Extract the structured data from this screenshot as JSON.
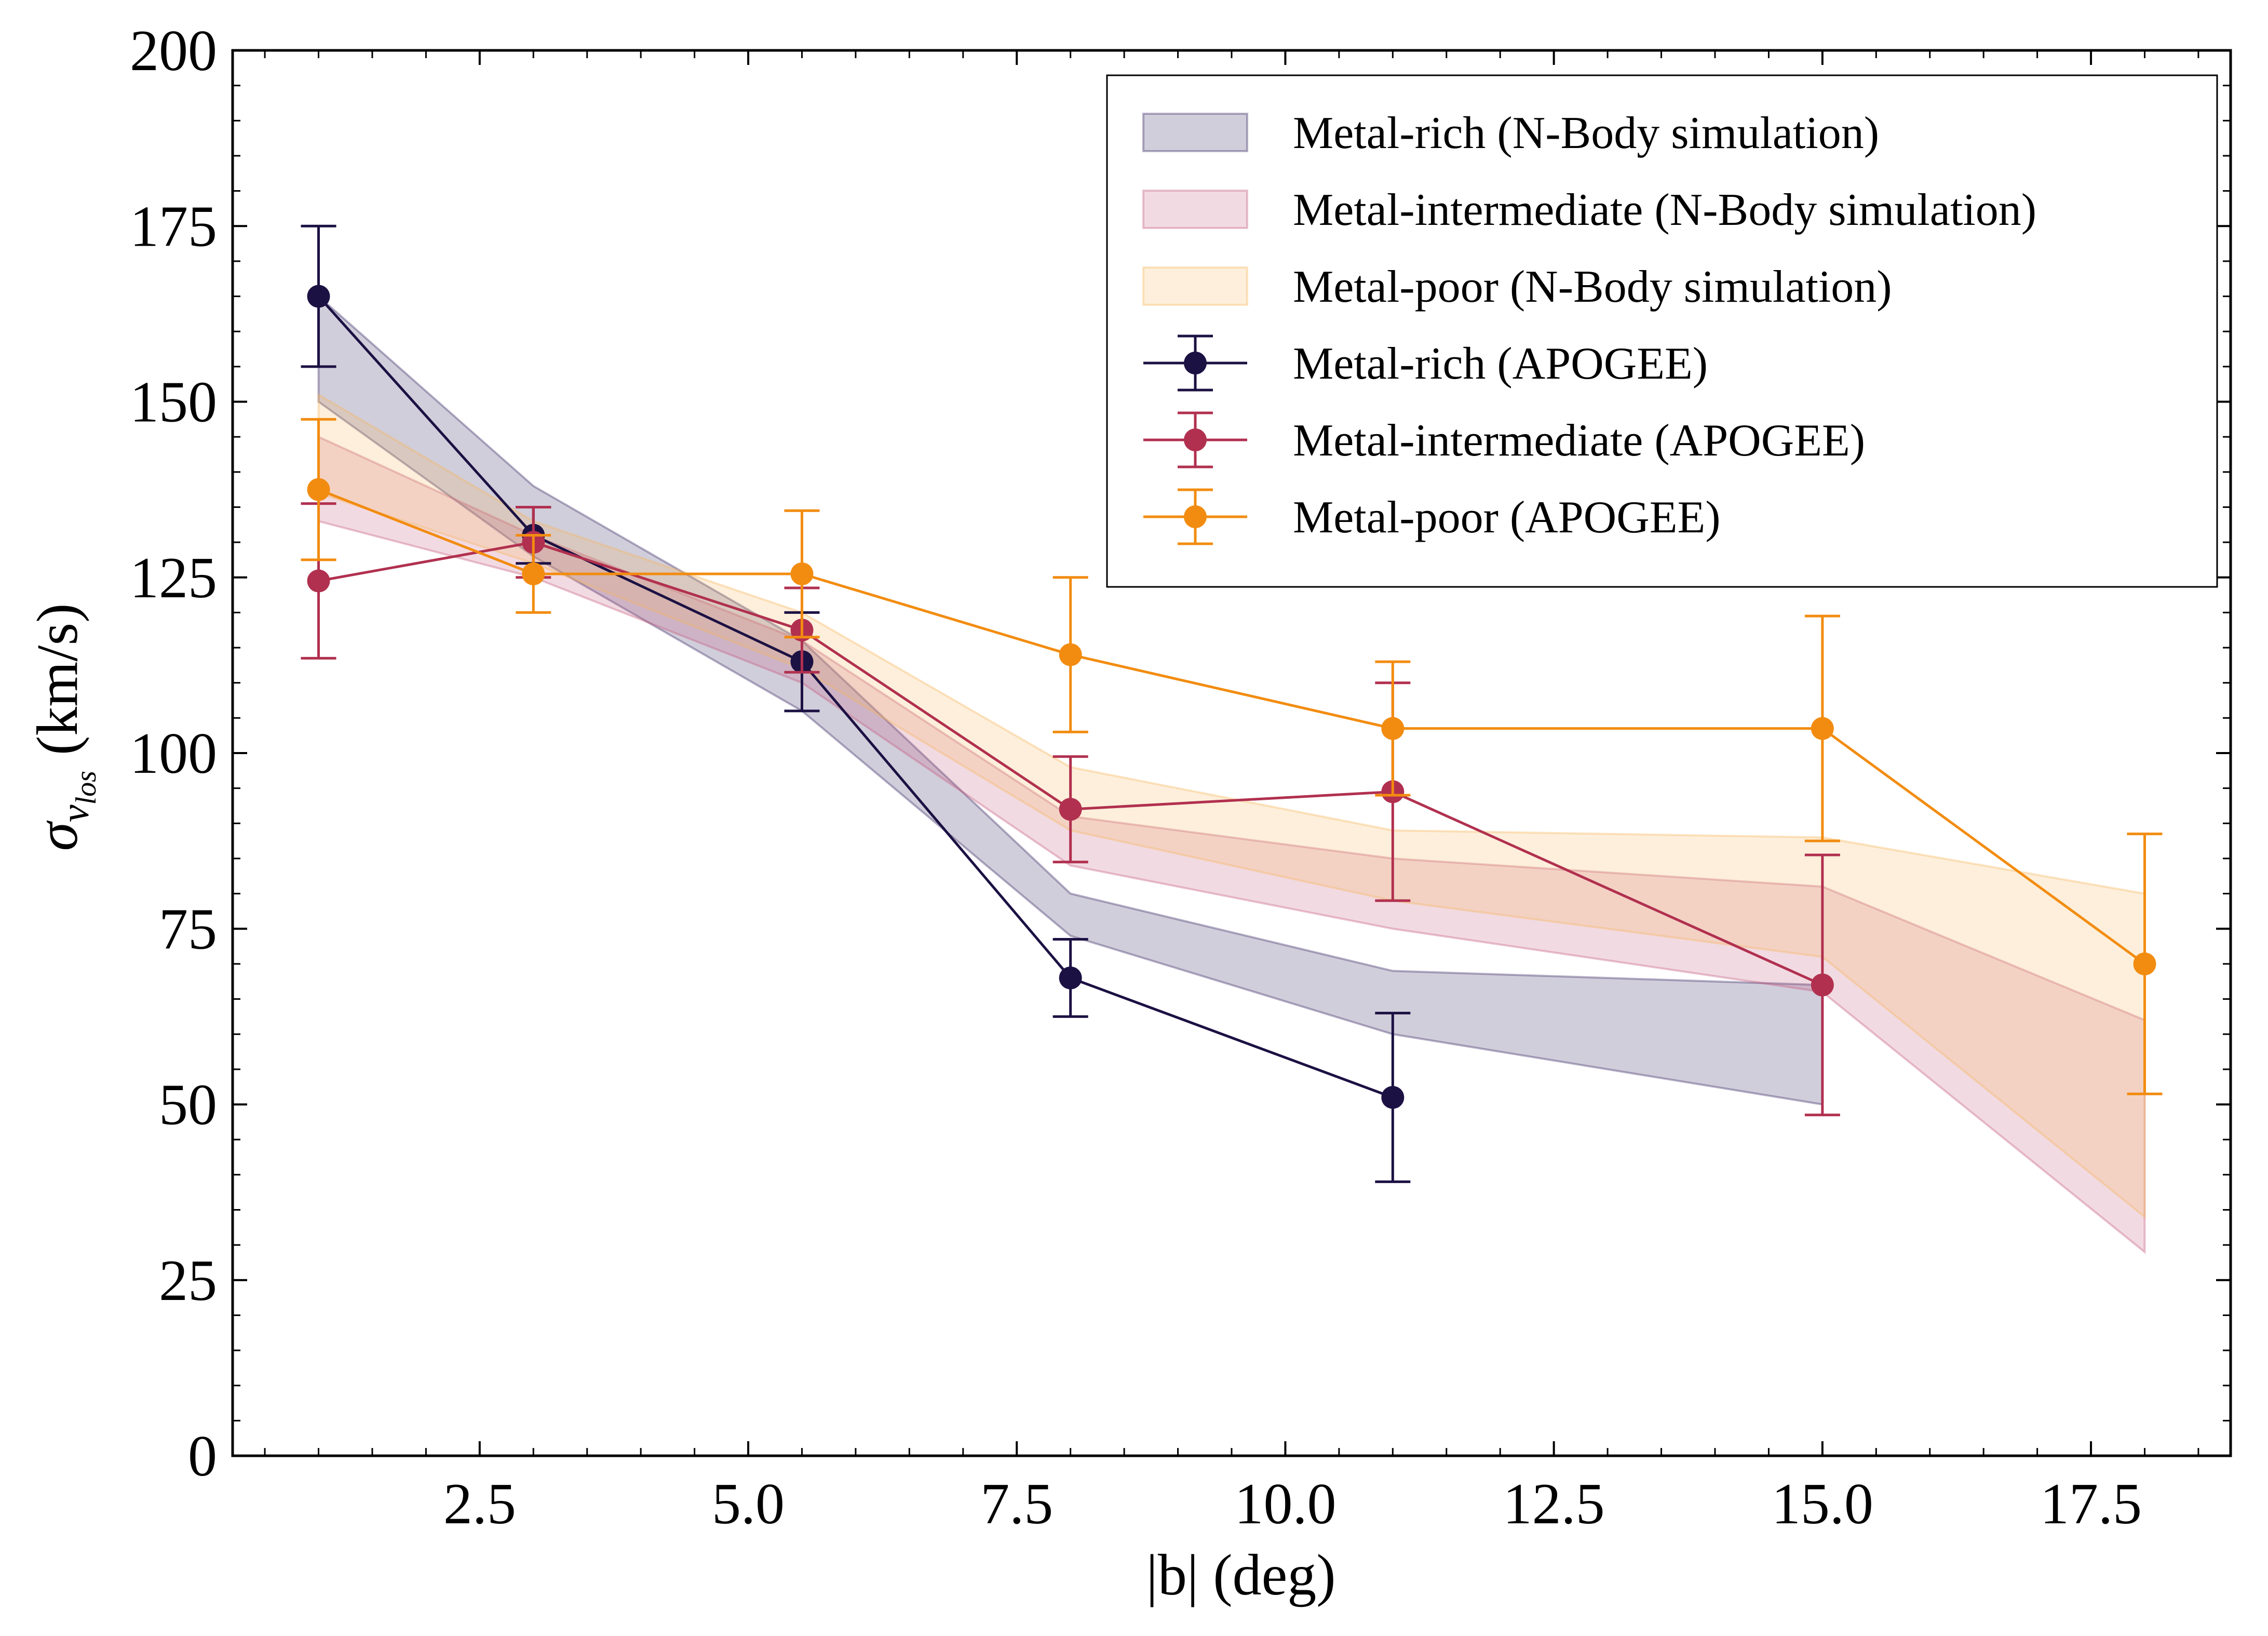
{
  "chart_data": {
    "type": "line",
    "title": "",
    "xlabel": "|b| (deg)",
    "ylabel": {
      "sigma": "σ",
      "v": "v",
      "sub": "los",
      "units": "(km/s)"
    },
    "xlim": [
      0.2,
      18.8
    ],
    "ylim": [
      0,
      200
    ],
    "xticks": [
      "2.5",
      "5.0",
      "7.5",
      "10.0",
      "12.5",
      "15.0",
      "17.5"
    ],
    "yticks": [
      "0",
      "25",
      "50",
      "75",
      "100",
      "125",
      "150",
      "175",
      "200"
    ],
    "grid": false,
    "legend_position": "top-right",
    "bands": [
      {
        "name": "Metal-rich (N-Body simulation)",
        "color": "#2d1e5c",
        "x": [
          1,
          3,
          5.5,
          8,
          11,
          15
        ],
        "lower": [
          150,
          128,
          106,
          74,
          60,
          50
        ],
        "upper": [
          165,
          138,
          116,
          80,
          69,
          67
        ]
      },
      {
        "name": "Metal-intermediate (N-Body simulation)",
        "color": "#c2557a",
        "x": [
          1,
          3,
          5.5,
          8,
          11,
          15,
          18
        ],
        "lower": [
          133,
          125,
          110,
          84,
          75,
          66,
          29
        ],
        "upper": [
          145,
          131,
          116,
          91,
          85,
          81,
          62
        ]
      },
      {
        "name": "Metal-poor (N-Body simulation)",
        "color": "#f6b45a",
        "x": [
          1,
          3,
          5.5,
          8,
          11,
          15,
          18
        ],
        "lower": [
          137,
          127,
          112,
          89,
          79,
          71,
          34
        ],
        "upper": [
          151,
          133,
          120,
          98,
          89,
          88,
          80
        ]
      }
    ],
    "series": [
      {
        "name": "Metal-rich (APOGEE)",
        "color": "#1c1143",
        "x": [
          1,
          3,
          5.5,
          8,
          11
        ],
        "y": [
          165,
          131,
          113,
          68,
          51
        ],
        "yerr": [
          10,
          4,
          7,
          5.5,
          12
        ]
      },
      {
        "name": "Metal-intermediate (APOGEE)",
        "color": "#b1304f",
        "x": [
          1,
          3,
          5.5,
          8,
          11,
          15
        ],
        "y": [
          124.5,
          130,
          117.5,
          92,
          94.5,
          67
        ],
        "yerr": [
          11,
          5,
          6,
          7.5,
          15.5,
          18.5
        ]
      },
      {
        "name": "Metal-poor (APOGEE)",
        "color": "#f28c10",
        "x": [
          1,
          3,
          5.5,
          8,
          11,
          15,
          18
        ],
        "y": [
          137.5,
          125.5,
          125.5,
          114,
          103.5,
          103.5,
          70
        ],
        "yerr": [
          10,
          5.5,
          9,
          11,
          9.5,
          16,
          18.5
        ]
      }
    ]
  }
}
